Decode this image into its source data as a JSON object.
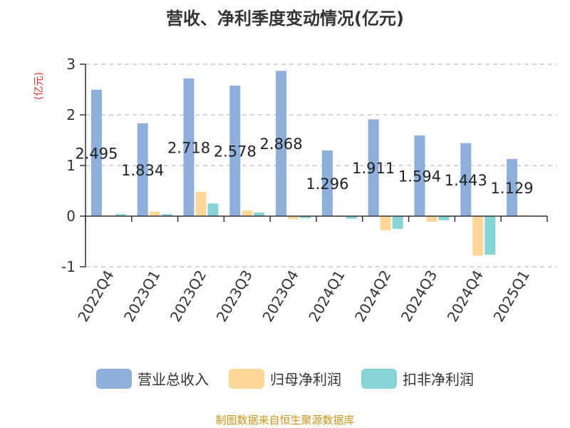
{
  "chart_data": {
    "type": "bar",
    "title": "营收、净利季度变动情况(亿元)",
    "ylabel": "(亿元)",
    "xlabel": "",
    "ylim": [
      -1,
      3
    ],
    "yticks": [
      "3",
      "2",
      "1",
      "0",
      "-1"
    ],
    "grid": true,
    "legend_position": "bottom",
    "categories": [
      "2022Q4",
      "2023Q1",
      "2023Q2",
      "2023Q3",
      "2023Q4",
      "2024Q1",
      "2024Q2",
      "2024Q3",
      "2024Q4",
      "2025Q1"
    ],
    "series": [
      {
        "name": "营业总收入",
        "color": "#8eaedc",
        "values": [
          2.495,
          1.834,
          2.718,
          2.578,
          2.868,
          1.296,
          1.911,
          1.594,
          1.443,
          1.129
        ]
      },
      {
        "name": "归母净利润",
        "color": "#fdd797",
        "values": [
          0.02,
          0.09,
          0.48,
          0.11,
          -0.06,
          -0.01,
          -0.28,
          -0.11,
          -0.78,
          0.02
        ]
      },
      {
        "name": "扣非净利润",
        "color": "#86d4d6",
        "values": [
          0.04,
          0.04,
          0.25,
          0.07,
          -0.04,
          -0.05,
          -0.25,
          -0.08,
          -0.76,
          0.01
        ]
      }
    ],
    "data_labels": [
      "2.495",
      "1.834",
      "2.718",
      "2.578",
      "2.868",
      "1.296",
      "1.911",
      "1.594",
      "1.443",
      "1.129"
    ]
  },
  "source": "制图数据来自恒生聚源数据库"
}
